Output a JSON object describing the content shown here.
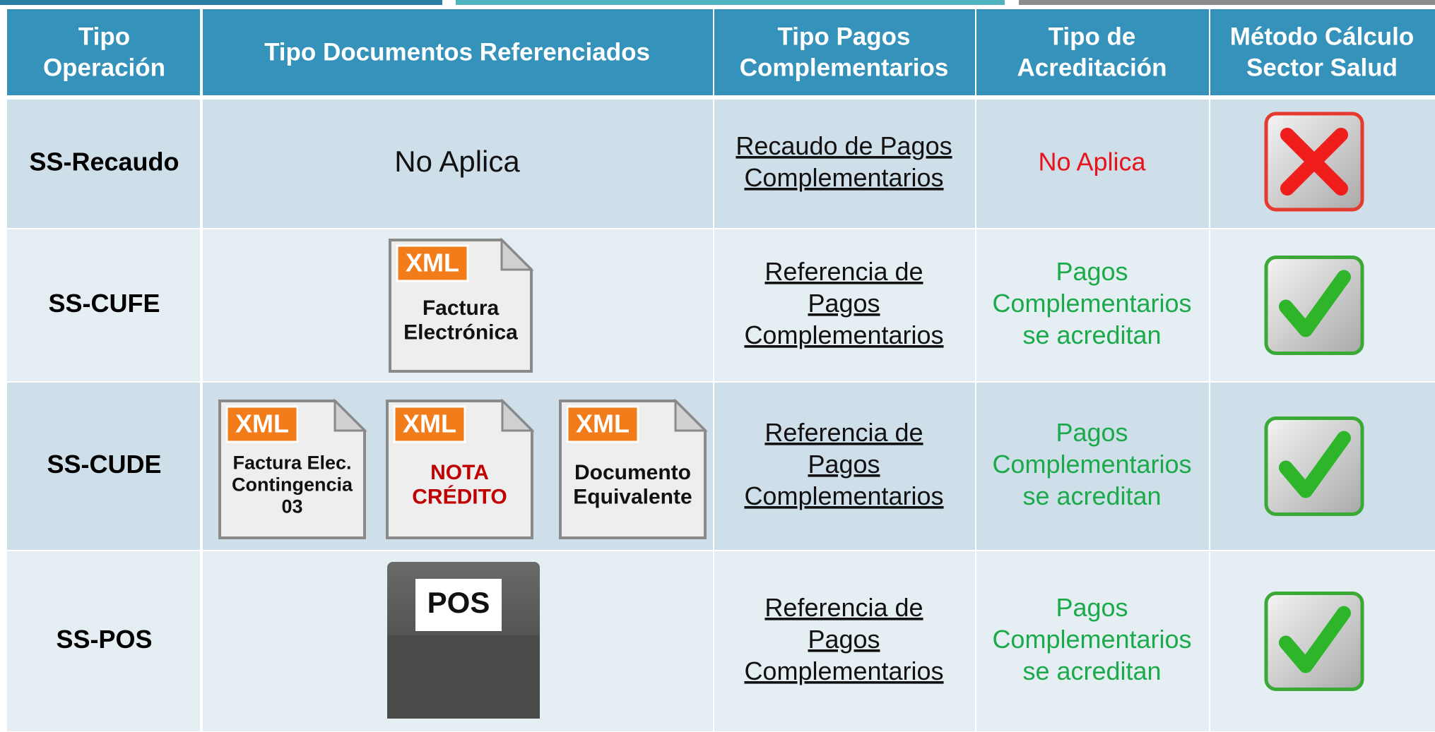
{
  "table": {
    "header": [
      [
        "Tipo",
        "Operación"
      ],
      [
        "Tipo Documentos Referenciados"
      ],
      [
        "Tipo Pagos",
        "Complementarios"
      ],
      [
        "Tipo de",
        "Acreditación"
      ],
      [
        "Método Cálculo",
        "Sector Salud"
      ]
    ],
    "rows": [
      {
        "operation": "SS-Recaudo",
        "documents_text": "No Aplica",
        "documents": [],
        "pagos": [
          "Recaudo de Pagos",
          "Complementarios"
        ],
        "acreditacion": [
          "No Aplica"
        ],
        "acreditacion_color": "#e8121b",
        "check": false
      },
      {
        "operation": "SS-CUFE",
        "documents": [
          {
            "badge": "XML",
            "lines": [
              "Factura",
              "Electrónica"
            ],
            "color": "#111111"
          }
        ],
        "pagos": [
          "Referencia de",
          "Pagos",
          "Complementarios"
        ],
        "acreditacion": [
          "Pagos",
          "Complementarios",
          "se acreditan"
        ],
        "acreditacion_color": "#1aaa4a",
        "check": true
      },
      {
        "operation": "SS-CUDE",
        "documents": [
          {
            "badge": "XML",
            "lines": [
              "Factura Elec.",
              "Contingencia",
              "03"
            ],
            "color": "#111111"
          },
          {
            "badge": "XML",
            "lines": [
              "NOTA",
              "CRÉDITO"
            ],
            "color": "#c00000"
          },
          {
            "badge": "XML",
            "lines": [
              "Documento",
              "Equivalente"
            ],
            "color": "#111111"
          }
        ],
        "pagos": [
          "Referencia de",
          "Pagos",
          "Complementarios"
        ],
        "acreditacion": [
          "Pagos",
          "Complementarios",
          "se acreditan"
        ],
        "acreditacion_color": "#1aaa4a",
        "check": true
      },
      {
        "operation": "SS-POS",
        "documents": [],
        "pos": "POS",
        "pagos": [
          "Referencia de",
          "Pagos",
          "Complementarios"
        ],
        "acreditacion": [
          "Pagos",
          "Complementarios",
          "se acreditan"
        ],
        "acreditacion_color": "#1aaa4a",
        "check": true
      }
    ]
  }
}
